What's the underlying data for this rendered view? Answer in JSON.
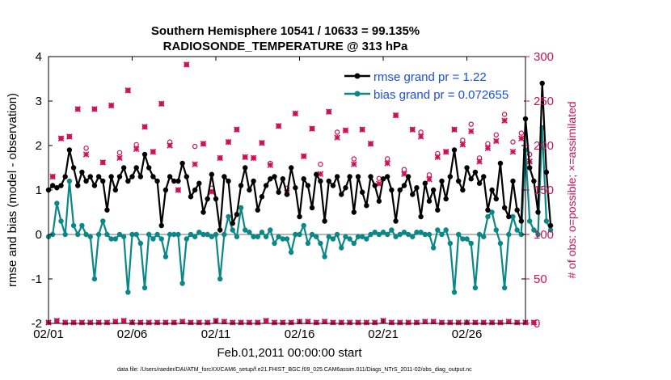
{
  "chart_data": {
    "type": "line",
    "title": "Southern Hemisphere 10541 / 10633 = 99.135%",
    "subtitle": "RADIOSONDE_TEMPERATURE @ 313 hPa",
    "xlabel": "Feb.01,2011 00:00:00 start",
    "ylabel": "rmse and bias (model - observation)",
    "y2label": "# of obs: o=possible; ×=assimilated",
    "footer": "data file: /Users/raeder/DAI/ATM_forcXX/CAM6_setup/f.e21.FHIST_BGC.f09_025.CAM6assim.011/Diags_NTrS_2011-02/obs_diag_output.nc",
    "x_tick_labels": [
      "02/01",
      "02/06",
      "02/11",
      "02/16",
      "02/21",
      "02/26"
    ],
    "x_tick_days": [
      0,
      5,
      10,
      15,
      20,
      25
    ],
    "xlim": [
      0,
      28.5
    ],
    "ylim": [
      -2,
      4
    ],
    "y_ticks": [
      -2,
      -1,
      0,
      1,
      2,
      3,
      4
    ],
    "y2lim": [
      0,
      300
    ],
    "y2_ticks": [
      0,
      50,
      100,
      150,
      200,
      250,
      300
    ],
    "zero_line": 0,
    "x_step_days": 0.25,
    "series": [
      {
        "name": "rmse grand pr = 1.22",
        "color": "#000000",
        "axis": "left",
        "values": [
          1.0,
          1.1,
          1.05,
          1.1,
          1.3,
          1.9,
          1.5,
          1.1,
          1.4,
          1.2,
          1.3,
          1.1,
          1.3,
          1.2,
          0.55,
          1.3,
          1.0,
          1.3,
          1.5,
          1.2,
          1.3,
          1.5,
          1.3,
          1.8,
          1.5,
          1.3,
          1.2,
          0.2,
          1.0,
          1.3,
          1.2,
          1.2,
          1.6,
          1.3,
          0.85,
          1.0,
          1.15,
          0.5,
          0.8,
          1.35,
          0.8,
          0.1,
          1.3,
          1.2,
          0.25,
          0.45,
          1.1,
          1.5,
          1.0,
          1.2,
          0.55,
          0.85,
          1.1,
          1.25,
          1.3,
          0.95,
          1.25,
          0.9,
          1.5,
          1.05,
          0.4,
          1.25,
          1.1,
          0.6,
          1.35,
          1.2,
          0.3,
          1.2,
          1.1,
          1.3,
          0.9,
          1.05,
          1.3,
          0.5,
          1.3,
          0.95,
          0.65,
          1.3,
          1.1,
          0.75,
          1.25,
          1.3,
          1.0,
          0.3,
          1.0,
          1.1,
          1.3,
          0.9,
          1.05,
          0.4,
          1.15,
          0.75,
          1.0,
          0.55,
          1.2,
          0.8,
          1.3,
          1.9,
          1.2,
          1.0,
          1.5,
          1.25,
          1.4,
          1.15,
          1.3,
          0.55,
          1.0,
          0.8,
          1.6,
          0.6,
          0.4,
          1.2,
          0.55,
          0.3,
          2.6,
          1.5,
          1.2,
          0.5,
          3.4,
          1.4,
          0.2
        ]
      },
      {
        "name": "bias grand pr = 0.072655",
        "color": "#0a8787",
        "axis": "left",
        "values": [
          -0.05,
          0.0,
          0.7,
          0.3,
          0.0,
          1.2,
          0.2,
          0.0,
          0.2,
          0.0,
          -0.05,
          -1.0,
          0.0,
          0.3,
          0.0,
          -0.1,
          -0.1,
          0.0,
          -0.05,
          -1.3,
          0.0,
          0.0,
          -0.2,
          -1.2,
          0.0,
          -0.1,
          0.0,
          -0.1,
          -0.5,
          0.0,
          0.0,
          0.0,
          -1.1,
          -0.1,
          0.0,
          -0.05,
          0.05,
          0.0,
          0.0,
          -0.05,
          0.0,
          -1.0,
          0.0,
          0.4,
          0.1,
          -0.05,
          0.6,
          0.1,
          0.05,
          -0.05,
          -0.05,
          0.05,
          -0.05,
          0.1,
          -0.2,
          -0.05,
          -0.1,
          -0.1,
          -0.4,
          0.0,
          0.0,
          0.2,
          -0.2,
          0.0,
          -0.05,
          -0.2,
          -0.5,
          -0.05,
          -0.1,
          0.0,
          -0.3,
          -0.05,
          -0.1,
          -0.2,
          -0.05,
          -0.05,
          -0.1,
          0.0,
          0.05,
          0.0,
          0.05,
          0.0,
          0.1,
          -0.05,
          0.0,
          0.05,
          0.0,
          -0.05,
          0.05,
          0.05,
          0.0,
          0.0,
          -0.3,
          0.1,
          0.0,
          0.1,
          -0.2,
          -1.3,
          0.0,
          -0.1,
          -0.1,
          -0.2,
          -1.2,
          0.0,
          -0.05,
          0.4,
          0.5,
          0.1,
          -0.2,
          -1.2,
          0.0,
          0.4,
          0.1,
          0.0,
          1.9,
          0.3,
          0.1,
          0.0,
          2.4,
          0.3,
          0.1
        ]
      }
    ],
    "obs_possible": {
      "name": "possible (o)",
      "color": "#cc1155",
      "axis": "right",
      "values": [
        1,
        165,
        3,
        208,
        1,
        210,
        1,
        241,
        1,
        197,
        1,
        241,
        1,
        181,
        1,
        245,
        2,
        192,
        3,
        262,
        1,
        201,
        1,
        221,
        1,
        193,
        1,
        247,
        1,
        204,
        1,
        150,
        2,
        291,
        1,
        199,
        1,
        202,
        1,
        152,
        3,
        186,
        2,
        204,
        1,
        218,
        1,
        187,
        1,
        186,
        1,
        203,
        3,
        180,
        1,
        222,
        1,
        152,
        1,
        236,
        2,
        188,
        2,
        219,
        1,
        179,
        2,
        238,
        1,
        215,
        1,
        217,
        1,
        185,
        1,
        218,
        1,
        202,
        1,
        163,
        3,
        185,
        1,
        234,
        1,
        173,
        1,
        218,
        1,
        215,
        2,
        167,
        2,
        191,
        1,
        193,
        1,
        218,
        1,
        206,
        1,
        224,
        1,
        186,
        1,
        202,
        1,
        212,
        1,
        235,
        2,
        204,
        1,
        214,
        1,
        190,
        1
      ]
    },
    "obs_assimilated": {
      "name": "assimilated (×)",
      "color": "#cc1155",
      "axis": "right",
      "values": [
        1,
        165,
        3,
        208,
        1,
        210,
        1,
        241,
        1,
        190,
        1,
        241,
        1,
        181,
        1,
        245,
        2,
        186,
        3,
        262,
        1,
        196,
        1,
        221,
        1,
        193,
        1,
        247,
        1,
        200,
        1,
        150,
        2,
        291,
        1,
        179,
        1,
        202,
        1,
        148,
        3,
        186,
        2,
        204,
        1,
        218,
        1,
        187,
        1,
        186,
        1,
        203,
        3,
        178,
        1,
        222,
        1,
        147,
        1,
        236,
        2,
        188,
        2,
        219,
        1,
        168,
        2,
        238,
        1,
        209,
        1,
        217,
        1,
        179,
        1,
        218,
        1,
        202,
        1,
        157,
        3,
        180,
        1,
        234,
        1,
        168,
        1,
        218,
        1,
        210,
        2,
        162,
        2,
        187,
        1,
        193,
        1,
        218,
        1,
        201,
        1,
        216,
        1,
        182,
        1,
        197,
        1,
        205,
        1,
        228,
        2,
        193,
        1,
        208,
        1,
        182,
        1
      ]
    }
  }
}
